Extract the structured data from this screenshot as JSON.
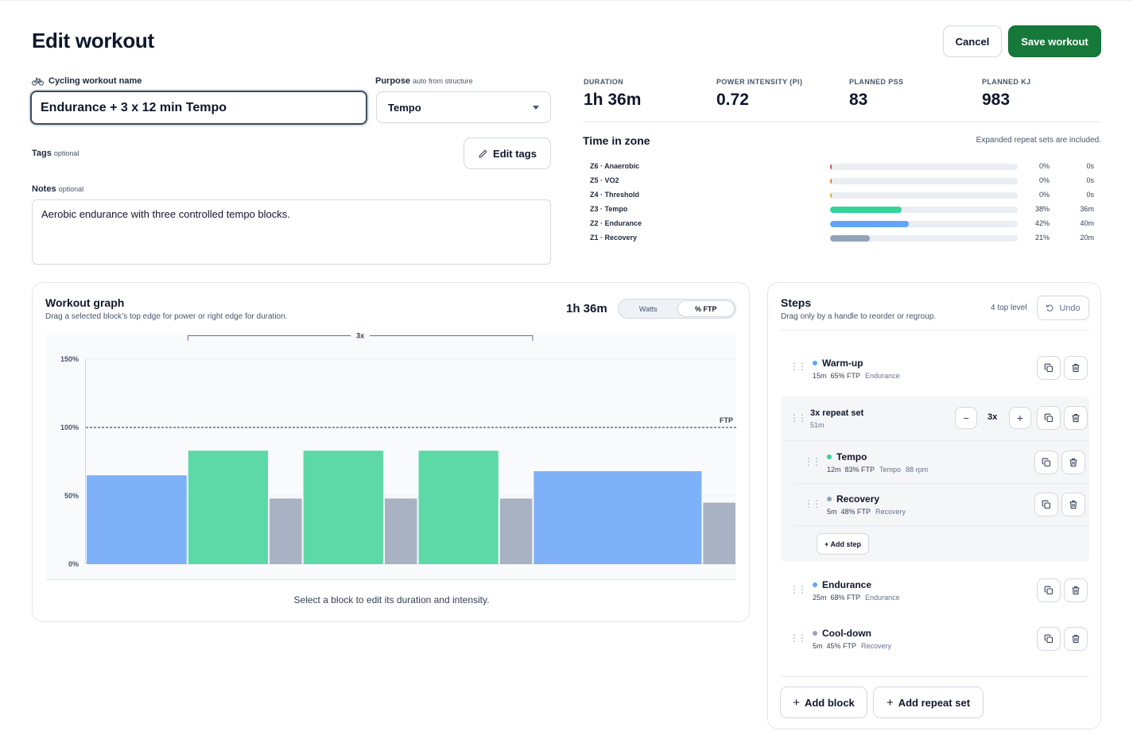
{
  "page": {
    "title": "Edit workout"
  },
  "actions": {
    "cancel_label": "Cancel",
    "save_label": "Save workout"
  },
  "form": {
    "name_label": "Cycling workout name",
    "name_value": "Endurance + 3 x 12 min Tempo",
    "purpose_label": "Purpose",
    "purpose_hint": "auto from structure",
    "purpose_value": "Tempo",
    "tags_label": "Tags",
    "tags_optional": "optional",
    "edit_tags_label": "Edit tags",
    "notes_label": "Notes",
    "notes_optional": "optional",
    "notes_value": "Aerobic endurance with three controlled tempo blocks."
  },
  "metrics": [
    {
      "label": "Duration",
      "value": "1h 36m"
    },
    {
      "label": "Power Intensity (PI)",
      "value": "0.72"
    },
    {
      "label": "Planned PSS",
      "value": "83"
    },
    {
      "label": "Planned kJ",
      "value": "983"
    }
  ],
  "time_in_zone": {
    "title": "Time in zone",
    "note": "Expanded repeat sets are included.",
    "zones": [
      {
        "name": "Z6 · Anaerobic",
        "pct": "0%",
        "dur": "0s",
        "fraction": 0,
        "color": "#ef4444"
      },
      {
        "name": "Z5 · VO2",
        "pct": "0%",
        "dur": "0s",
        "fraction": 0,
        "color": "#f97316"
      },
      {
        "name": "Z4 · Threshold",
        "pct": "0%",
        "dur": "0s",
        "fraction": 0,
        "color": "#eab308"
      },
      {
        "name": "Z3 · Tempo",
        "pct": "38%",
        "dur": "36m",
        "fraction": 0.38,
        "color": "#34d399"
      },
      {
        "name": "Z2 · Endurance",
        "pct": "42%",
        "dur": "40m",
        "fraction": 0.42,
        "color": "#60a5fa"
      },
      {
        "name": "Z1 · Recovery",
        "pct": "21%",
        "dur": "20m",
        "fraction": 0.21,
        "color": "#94a3b8"
      }
    ]
  },
  "graph": {
    "title": "Workout graph",
    "subtitle": "Drag a selected block’s top edge for power or right edge for duration.",
    "duration": "1h 36m",
    "toggle": {
      "watts": "Watts",
      "ftp": "% FTP",
      "selected": "% FTP"
    },
    "repeat_label": "3x",
    "ftp_label": "FTP",
    "footer": "Select a block to edit its duration and intensity."
  },
  "chart_data": {
    "type": "bar",
    "y_ticks": [
      "0%",
      "50%",
      "100%",
      "150%"
    ],
    "ylim": [
      0,
      150
    ],
    "ftp_line": 100,
    "colors": {
      "endurance": "#7eb1f7",
      "tempo": "#5dd9a8",
      "recovery": "#a8b2c3"
    },
    "blocks": [
      {
        "name": "Warm-up",
        "duration_min": 15,
        "ftp_pct": 65,
        "zone": "endurance"
      },
      {
        "name": "Tempo",
        "duration_min": 12,
        "ftp_pct": 83,
        "zone": "tempo"
      },
      {
        "name": "Recovery",
        "duration_min": 5,
        "ftp_pct": 48,
        "zone": "recovery"
      },
      {
        "name": "Tempo",
        "duration_min": 12,
        "ftp_pct": 83,
        "zone": "tempo"
      },
      {
        "name": "Recovery",
        "duration_min": 5,
        "ftp_pct": 48,
        "zone": "recovery"
      },
      {
        "name": "Tempo",
        "duration_min": 12,
        "ftp_pct": 83,
        "zone": "tempo"
      },
      {
        "name": "Recovery",
        "duration_min": 5,
        "ftp_pct": 48,
        "zone": "recovery"
      },
      {
        "name": "Endurance",
        "duration_min": 25,
        "ftp_pct": 68,
        "zone": "endurance"
      },
      {
        "name": "Cool-down",
        "duration_min": 5,
        "ftp_pct": 45,
        "zone": "recovery"
      }
    ]
  },
  "steps": {
    "title": "Steps",
    "subtitle": "Drag only by a handle to reorder or regroup.",
    "top_level": "4 top level",
    "undo_label": "Undo",
    "warmup": {
      "name": "Warm-up",
      "dur": "15m",
      "ftp": "65% FTP",
      "zone": "Endurance",
      "color": "#60a5fa"
    },
    "repeat": {
      "name": "3x repeat set",
      "dur": "51m",
      "count": "3x",
      "minus": "−",
      "plus": "+"
    },
    "tempo": {
      "name": "Tempo",
      "dur": "12m",
      "ftp": "83% FTP",
      "zone": "Tempo",
      "cadence": "88 rpm",
      "color": "#34d399"
    },
    "recovery": {
      "name": "Recovery",
      "dur": "5m",
      "ftp": "48% FTP",
      "zone": "Recovery",
      "color": "#94a3b8"
    },
    "add_step_label": "+ Add step",
    "endurance": {
      "name": "Endurance",
      "dur": "25m",
      "ftp": "68% FTP",
      "zone": "Endurance",
      "color": "#60a5fa"
    },
    "cooldown": {
      "name": "Cool-down",
      "dur": "5m",
      "ftp": "45% FTP",
      "zone": "Recovery",
      "color": "#94a3b8"
    },
    "add_block_label": "Add block",
    "add_repeat_label": "Add repeat set"
  }
}
